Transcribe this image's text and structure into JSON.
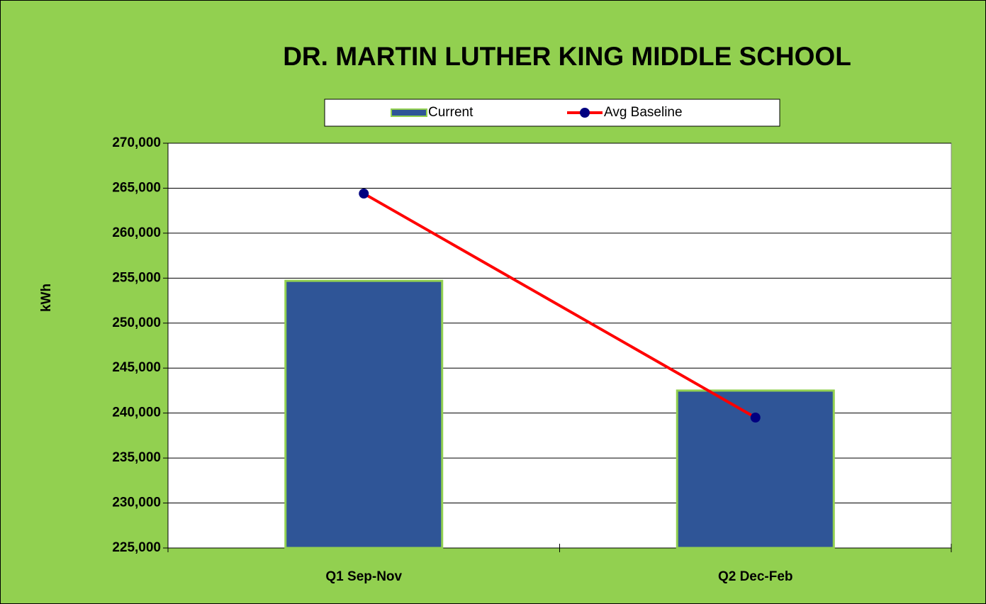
{
  "chart_data": {
    "type": "bar",
    "title": "DR. MARTIN LUTHER KING MIDDLE SCHOOL",
    "ylabel": "kWh",
    "categories": [
      "Q1 Sep-Nov",
      "Q2 Dec-Feb"
    ],
    "series": [
      {
        "name": "Current",
        "type": "bar",
        "color": "#2f5597",
        "values": [
          254700,
          242500
        ]
      },
      {
        "name": "Avg Baseline",
        "type": "line",
        "color": "#ff0000",
        "marker_color": "#000080",
        "values": [
          264400,
          239500
        ]
      }
    ],
    "ylim": [
      225000,
      270000
    ],
    "yticks": [
      {
        "value": 225000,
        "label": "225,000"
      },
      {
        "value": 230000,
        "label": "230,000"
      },
      {
        "value": 235000,
        "label": "235,000"
      },
      {
        "value": 240000,
        "label": "240,000"
      },
      {
        "value": 245000,
        "label": "245,000"
      },
      {
        "value": 250000,
        "label": "250,000"
      },
      {
        "value": 255000,
        "label": "255,000"
      },
      {
        "value": 260000,
        "label": "260,000"
      },
      {
        "value": 265000,
        "label": "265,000"
      },
      {
        "value": 270000,
        "label": "270,000"
      }
    ],
    "grid": true
  }
}
